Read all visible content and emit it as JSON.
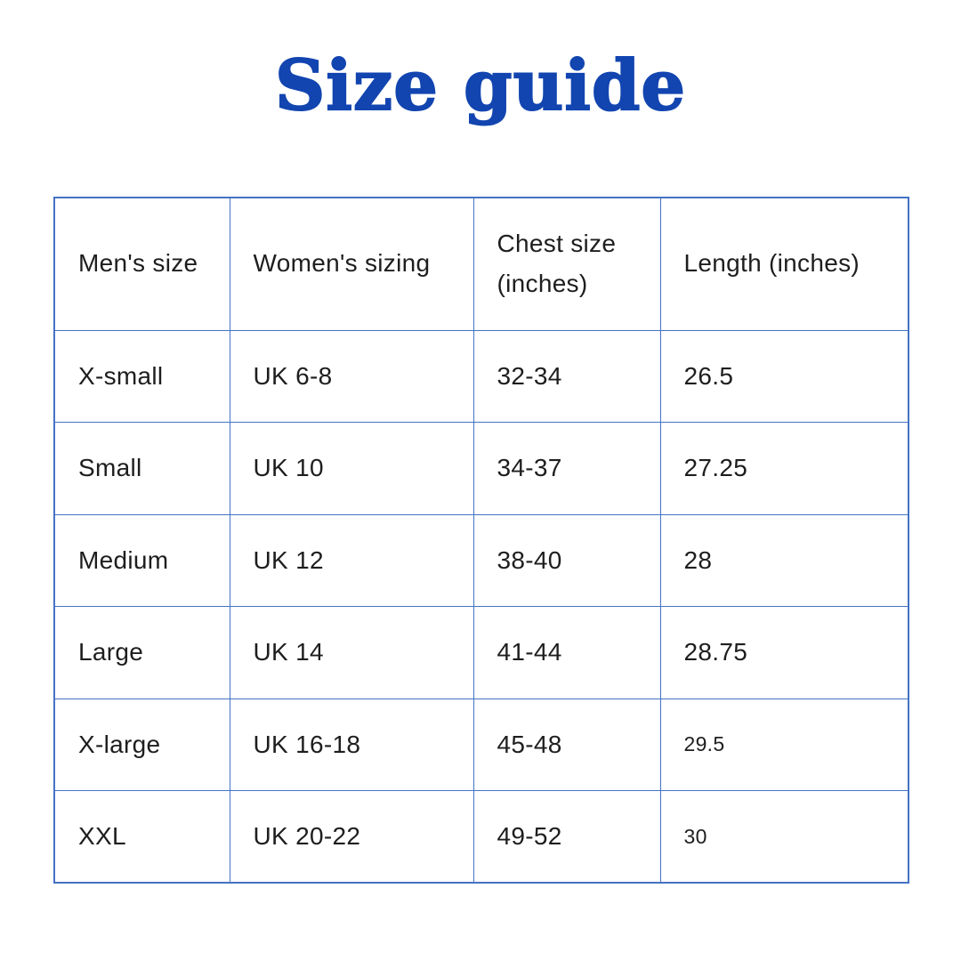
{
  "title": {
    "text": "Size guide"
  },
  "colors": {
    "title_blue": "#1245b0",
    "table_border_blue": "#4472c4",
    "text_color": "#1e1e1e",
    "background": "#ffffff"
  },
  "table": {
    "headers": [
      "Men's size",
      "Women's sizing",
      "Chest size (inches)",
      "Length (inches)"
    ],
    "rows": [
      [
        "X-small",
        "UK 6-8",
        "32-34",
        "26.5"
      ],
      [
        "Small",
        "UK 10",
        "34-37",
        "27.25"
      ],
      [
        "Medium",
        "UK 12",
        "38-40",
        "28"
      ],
      [
        "Large",
        "UK 14",
        "41-44",
        "28.75"
      ],
      [
        "X-large",
        "UK 16-18",
        "45-48",
        "29.5"
      ],
      [
        "XXL",
        "UK 20-22",
        "49-52",
        "30"
      ]
    ]
  }
}
